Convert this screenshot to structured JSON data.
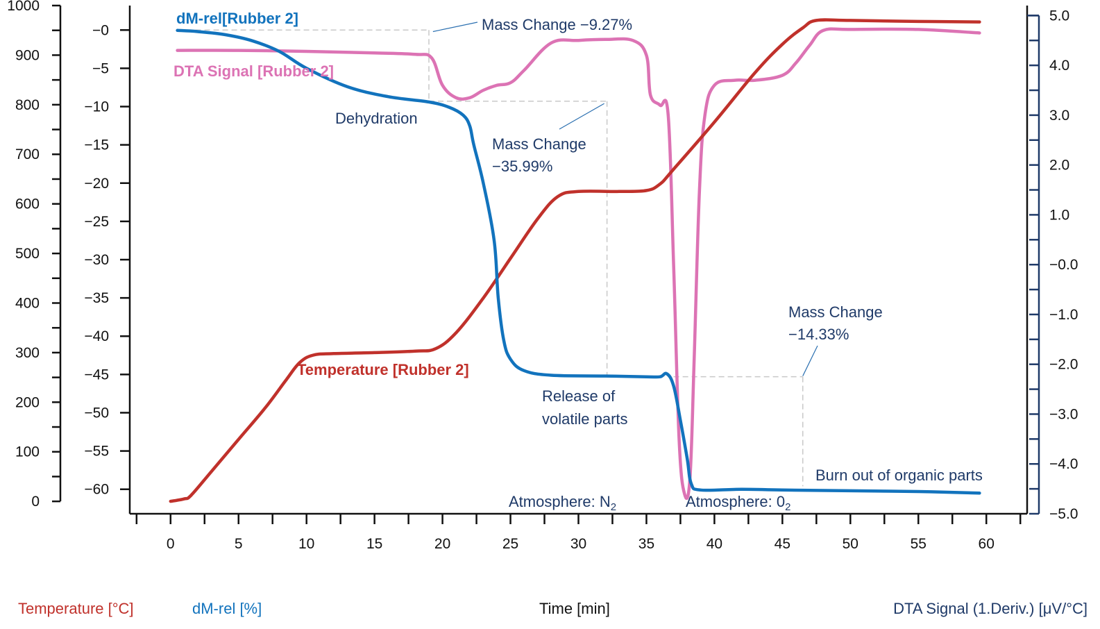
{
  "chart_data": {
    "type": "line",
    "x": {
      "label": "Time [min]",
      "range": [
        -3,
        63
      ],
      "ticks": [
        0,
        5,
        10,
        15,
        20,
        25,
        30,
        35,
        40,
        45,
        50,
        55,
        60
      ]
    },
    "y_axes": {
      "temperature": {
        "label": "Temperature [°C]",
        "range": [
          -25,
          1000
        ],
        "ticks": [
          0,
          100,
          200,
          300,
          400,
          500,
          600,
          700,
          800,
          900,
          1000
        ],
        "tick_labels": [
          "0",
          "100",
          "200",
          "300",
          "400",
          "500",
          "600",
          "700",
          "800",
          "900",
          "1000"
        ],
        "color": "#c0312b"
      },
      "dm_rel": {
        "label": "dM-rel [%]",
        "range": [
          -63.2,
          3.2
        ],
        "ticks": [
          0,
          -5,
          -10,
          -15,
          -20,
          -25,
          -30,
          -35,
          -40,
          -45,
          -50,
          -55,
          -60
        ],
        "tick_labels": [
          "−0",
          "−5",
          "−10",
          "−15",
          "−20",
          "−25",
          "−30",
          "−35",
          "−40",
          "−45",
          "−50",
          "−55",
          "−60"
        ],
        "color": "#1273bd"
      },
      "dta": {
        "label": "DTA Signal (1.Deriv.) [μV/°C]",
        "range": [
          -5.0,
          5.2
        ],
        "ticks": [
          5,
          4,
          3,
          2,
          1,
          0,
          -1,
          -2,
          -3,
          -4,
          -5
        ],
        "tick_labels": [
          "5.0",
          "4.0",
          "3.0",
          "2.0",
          "1.0",
          "−0.0",
          "−1.0",
          "−2.0",
          "−3.0",
          "−4.0",
          "−5.0"
        ],
        "color": "#1f3a68"
      }
    },
    "series": [
      {
        "name": "Temperature [Rubber 2]",
        "axis": "temperature",
        "color": "#c0312b",
        "points": [
          [
            0,
            0
          ],
          [
            1,
            5
          ],
          [
            1.5,
            12
          ],
          [
            3,
            60
          ],
          [
            5,
            125
          ],
          [
            7,
            190
          ],
          [
            8.5,
            245
          ],
          [
            9.5,
            280
          ],
          [
            10.5,
            295
          ],
          [
            12,
            298
          ],
          [
            15,
            300
          ],
          [
            18,
            303
          ],
          [
            19.5,
            308
          ],
          [
            21,
            340
          ],
          [
            23,
            410
          ],
          [
            25,
            490
          ],
          [
            27,
            570
          ],
          [
            28.5,
            615
          ],
          [
            30,
            625
          ],
          [
            33,
            625
          ],
          [
            35,
            627
          ],
          [
            36,
            640
          ],
          [
            37,
            670
          ],
          [
            40,
            765
          ],
          [
            43,
            865
          ],
          [
            45,
            922
          ],
          [
            46.5,
            955
          ],
          [
            47.5,
            970
          ],
          [
            50,
            970
          ],
          [
            55,
            968
          ],
          [
            59.5,
            967
          ]
        ]
      },
      {
        "name": "dM-rel[Rubber 2]",
        "axis": "dm_rel",
        "color": "#1273bd",
        "points": [
          [
            0.5,
            -0.05
          ],
          [
            2,
            -0.2
          ],
          [
            4,
            -0.6
          ],
          [
            6,
            -1.4
          ],
          [
            8,
            -2.8
          ],
          [
            10,
            -5.0
          ],
          [
            13,
            -7.4
          ],
          [
            16,
            -8.7
          ],
          [
            19,
            -9.4
          ],
          [
            20.5,
            -10.1
          ],
          [
            21.5,
            -11.1
          ],
          [
            22,
            -12.5
          ],
          [
            22.3,
            -15
          ],
          [
            23,
            -20
          ],
          [
            23.8,
            -27.5
          ],
          [
            24.1,
            -35
          ],
          [
            24.5,
            -40.5
          ],
          [
            25,
            -43
          ],
          [
            26,
            -44.5
          ],
          [
            28,
            -45.1
          ],
          [
            32,
            -45.2
          ],
          [
            35,
            -45.3
          ],
          [
            36,
            -45.3
          ],
          [
            36.5,
            -44.9
          ],
          [
            37,
            -46.5
          ],
          [
            37.5,
            -51
          ],
          [
            38,
            -56
          ],
          [
            38.3,
            -59.3
          ],
          [
            39,
            -60.1
          ],
          [
            42,
            -60
          ],
          [
            45,
            -60.1
          ],
          [
            50,
            -60.2
          ],
          [
            55,
            -60.3
          ],
          [
            59.5,
            -60.5
          ]
        ]
      },
      {
        "name": "DTA Signal [Rubber 2]",
        "axis": "dta",
        "color": "#dc73b4",
        "points": [
          [
            0.5,
            4.3
          ],
          [
            5,
            4.3
          ],
          [
            10,
            4.28
          ],
          [
            15,
            4.25
          ],
          [
            18,
            4.22
          ],
          [
            19.2,
            4.15
          ],
          [
            20,
            3.6
          ],
          [
            21,
            3.35
          ],
          [
            22,
            3.35
          ],
          [
            23,
            3.5
          ],
          [
            24,
            3.6
          ],
          [
            25,
            3.65
          ],
          [
            26,
            3.9
          ],
          [
            28,
            4.45
          ],
          [
            30,
            4.5
          ],
          [
            32,
            4.52
          ],
          [
            34,
            4.5
          ],
          [
            35,
            4.2
          ],
          [
            35.3,
            3.4
          ],
          [
            36,
            3.2
          ],
          [
            36.6,
            3.0
          ],
          [
            37,
            0
          ],
          [
            37.4,
            -3.5
          ],
          [
            37.8,
            -4.6
          ],
          [
            38.2,
            -4.3
          ],
          [
            38.5,
            -2.0
          ],
          [
            38.9,
            1.5
          ],
          [
            39.3,
            3.0
          ],
          [
            40,
            3.6
          ],
          [
            41.5,
            3.7
          ],
          [
            43,
            3.7
          ],
          [
            45,
            3.8
          ],
          [
            46,
            4.05
          ],
          [
            47,
            4.4
          ],
          [
            48,
            4.7
          ],
          [
            50,
            4.72
          ],
          [
            55,
            4.72
          ],
          [
            59.5,
            4.65
          ]
        ]
      }
    ],
    "series_labels": [
      {
        "text": "dM-rel[Rubber 2]",
        "color": "#1273bd"
      },
      {
        "text": "DTA Signal [Rubber 2]",
        "color": "#dc73b4"
      },
      {
        "text": "Temperature [Rubber 2]",
        "color": "#c0312b"
      }
    ],
    "annotations": {
      "mass_change_1": "Mass Change −9.27%",
      "mass_change_2_line1": "Mass Change",
      "mass_change_2_line2": "−35.99%",
      "mass_change_3_line1": "Mass Change",
      "mass_change_3_line2": "−14.33%",
      "dehydration": "Dehydration",
      "release_line1": "Release of",
      "release_line2": "volatile parts",
      "burn_out": "Burn out of organic parts",
      "atmosphere_n2_prefix": "Atmosphere: N",
      "atmosphere_n2_sub": "2",
      "atmosphere_o2_prefix": "Atmosphere: 0",
      "atmosphere_o2_sub": "2"
    },
    "grid": false
  }
}
